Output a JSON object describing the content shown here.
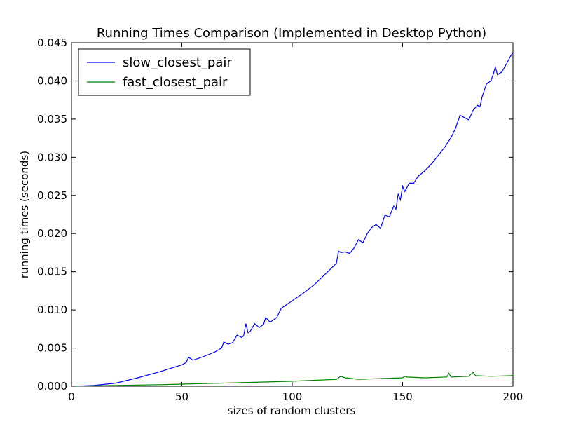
{
  "chart_data": {
    "type": "line",
    "title": "Running Times Comparison (Implemented in Desktop Python)",
    "xlabel": "sizes of random clusters",
    "ylabel": "running times (seconds)",
    "xlim": [
      0,
      200
    ],
    "ylim": [
      0,
      0.045
    ],
    "xticks": [
      0,
      50,
      100,
      150,
      200
    ],
    "xtick_labels": [
      "0",
      "50",
      "100",
      "150",
      "200"
    ],
    "yticks": [
      0,
      0.005,
      0.01,
      0.015,
      0.02,
      0.025,
      0.03,
      0.035,
      0.04,
      0.045
    ],
    "ytick_labels": [
      "0.000",
      "0.005",
      "0.010",
      "0.015",
      "0.020",
      "0.025",
      "0.030",
      "0.035",
      "0.040",
      "0.045"
    ],
    "grid": false,
    "legend": "top-left",
    "series": [
      {
        "name": "slow_closest_pair",
        "color": "#0000ff",
        "x": [
          2,
          10,
          20,
          30,
          40,
          50,
          52,
          53,
          55,
          60,
          65,
          68,
          69,
          71,
          73,
          75,
          77,
          78,
          79,
          80,
          81,
          83,
          85,
          87,
          88,
          90,
          92,
          93,
          95,
          100,
          105,
          110,
          115,
          120,
          121,
          122,
          124,
          126,
          128,
          130,
          132,
          134,
          136,
          138,
          140,
          142,
          144,
          146,
          147,
          148,
          149,
          150,
          151,
          153,
          155,
          157,
          160,
          163,
          166,
          169,
          172,
          174,
          176,
          178,
          180,
          182,
          184,
          185,
          186,
          188,
          190,
          191,
          192,
          193,
          195,
          197,
          199,
          200
        ],
        "y": [
          2e-05,
          0.0001,
          0.0004,
          0.0011,
          0.0019,
          0.0028,
          0.0031,
          0.0038,
          0.0034,
          0.0039,
          0.0045,
          0.005,
          0.0058,
          0.0055,
          0.0057,
          0.0067,
          0.0064,
          0.0066,
          0.0082,
          0.007,
          0.0072,
          0.0082,
          0.0077,
          0.0081,
          0.009,
          0.0084,
          0.0088,
          0.009,
          0.0102,
          0.0112,
          0.0122,
          0.0133,
          0.0147,
          0.0161,
          0.0177,
          0.0175,
          0.0176,
          0.0174,
          0.0181,
          0.0192,
          0.0188,
          0.02,
          0.0208,
          0.0212,
          0.0207,
          0.0224,
          0.0222,
          0.0236,
          0.0232,
          0.0252,
          0.0244,
          0.0262,
          0.0255,
          0.0266,
          0.0266,
          0.0275,
          0.0282,
          0.0291,
          0.0302,
          0.0313,
          0.0326,
          0.0338,
          0.0355,
          0.0352,
          0.0349,
          0.0362,
          0.0368,
          0.0366,
          0.0379,
          0.0396,
          0.04,
          0.0408,
          0.0418,
          0.0408,
          0.0412,
          0.0422,
          0.0433,
          0.0437
        ]
      },
      {
        "name": "fast_closest_pair",
        "color": "#008000",
        "x": [
          2,
          20,
          40,
          60,
          80,
          100,
          120,
          121,
          122,
          124,
          130,
          140,
          150,
          151,
          152,
          160,
          170,
          171,
          172,
          180,
          181,
          182,
          183,
          190,
          200
        ],
        "y": [
          2e-05,
          0.0001,
          0.0002,
          0.00035,
          0.0005,
          0.00065,
          0.0009,
          0.0011,
          0.0013,
          0.0011,
          0.0009,
          0.001,
          0.0011,
          0.0013,
          0.0012,
          0.0011,
          0.0012,
          0.0017,
          0.0012,
          0.0013,
          0.0016,
          0.0018,
          0.0014,
          0.0013,
          0.0014
        ]
      }
    ]
  }
}
